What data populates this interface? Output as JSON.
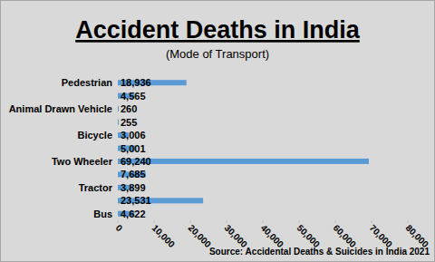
{
  "chart_data": {
    "type": "bar",
    "orientation": "horizontal",
    "title": "Accident Deaths in India",
    "subtitle": "(Mode of Transport)",
    "source": "Source: Accidental Deaths & Suicides in India 2021",
    "categories": [
      "Pedestrian",
      null,
      "Animal Drawn Vehicle",
      null,
      "Bicycle",
      null,
      "Two Wheeler",
      null,
      "Tractor",
      null,
      "Bus"
    ],
    "values": [
      18936,
      4565,
      260,
      255,
      3006,
      5001,
      69240,
      7685,
      3899,
      23531,
      4622
    ],
    "value_labels": [
      "18,936",
      "4,565",
      "260",
      "255",
      "3,006",
      "5,001",
      "69,240",
      "7,685",
      "3,899",
      "23,531",
      "4,622"
    ],
    "data_labels": true,
    "color": "#5b9bd5",
    "xlim": [
      0,
      80000
    ],
    "xticks": [
      0,
      {
        "value": 10000,
        "label": "10,000"
      },
      {
        "value": 20000,
        "label": "20,000"
      },
      {
        "value": 30000,
        "label": "30,000"
      },
      {
        "value": 40000,
        "label": "40,000"
      },
      {
        "value": 50000,
        "label": "50,000"
      },
      {
        "value": 60000,
        "label": "60,000"
      },
      {
        "value": 70000,
        "label": "70,000"
      },
      {
        "value": 80000,
        "label": "80,000"
      }
    ],
    "grid": false
  }
}
